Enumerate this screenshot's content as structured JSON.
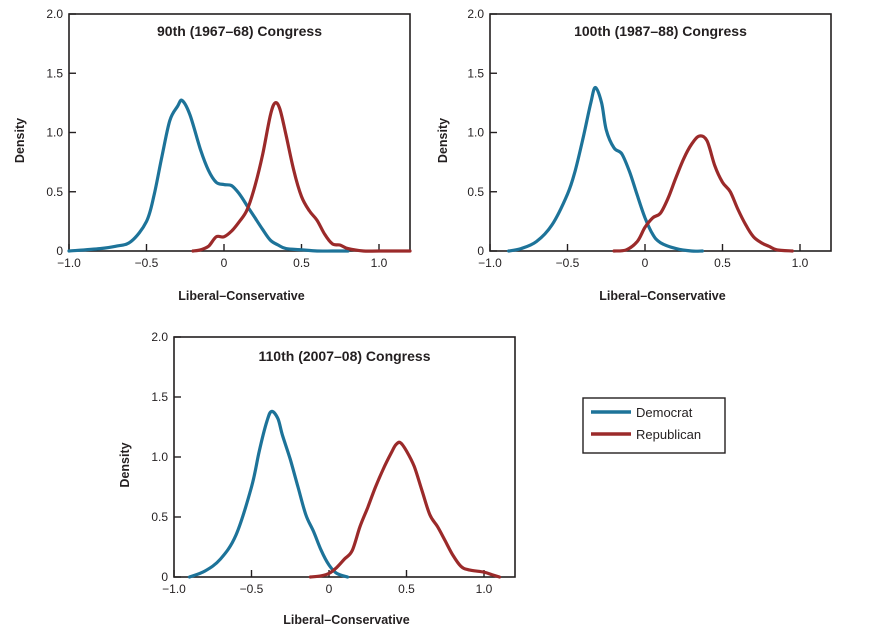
{
  "colors": {
    "democrat": "#1d7399",
    "republican": "#9b2a2a",
    "axis": "#231f20"
  },
  "chart_data": [
    {
      "type": "line",
      "title": "90th (1967–68) Congress",
      "xlabel": "Liberal–Conservative",
      "ylabel": "Density",
      "xlim": [
        -1.0,
        1.2
      ],
      "ylim": [
        0,
        2.0
      ],
      "xticks": [
        -1.0,
        -0.5,
        0,
        0.5,
        1.0
      ],
      "xtick_labels": [
        "−1.0",
        "−0.5",
        "0",
        "0.5",
        "1.0"
      ],
      "yticks": [
        0,
        0.5,
        1.0,
        1.5,
        2.0
      ],
      "ytick_labels": [
        "0",
        "0.5",
        "1.0",
        "1.5",
        "2.0"
      ],
      "series": [
        {
          "name": "Democrat",
          "color": "#1d7399",
          "x": [
            -1.0,
            -0.8,
            -0.7,
            -0.6,
            -0.5,
            -0.45,
            -0.4,
            -0.35,
            -0.3,
            -0.27,
            -0.22,
            -0.15,
            -0.1,
            -0.05,
            0.0,
            0.05,
            0.1,
            0.15,
            0.2,
            0.25,
            0.3,
            0.35,
            0.4,
            0.5,
            0.6,
            0.7,
            0.8
          ],
          "y": [
            0.0,
            0.02,
            0.04,
            0.08,
            0.25,
            0.48,
            0.8,
            1.1,
            1.22,
            1.27,
            1.15,
            0.85,
            0.68,
            0.58,
            0.56,
            0.55,
            0.48,
            0.38,
            0.28,
            0.18,
            0.09,
            0.05,
            0.02,
            0.01,
            0.0,
            0.0,
            0.0
          ]
        },
        {
          "name": "Republican",
          "color": "#9b2a2a",
          "x": [
            -0.2,
            -0.15,
            -0.1,
            -0.05,
            0.0,
            0.05,
            0.1,
            0.15,
            0.2,
            0.25,
            0.3,
            0.33,
            0.36,
            0.4,
            0.45,
            0.5,
            0.55,
            0.6,
            0.65,
            0.7,
            0.75,
            0.8,
            0.9,
            1.0,
            1.2
          ],
          "y": [
            0.0,
            0.01,
            0.04,
            0.12,
            0.12,
            0.17,
            0.25,
            0.35,
            0.55,
            0.82,
            1.15,
            1.25,
            1.2,
            0.98,
            0.68,
            0.46,
            0.34,
            0.26,
            0.14,
            0.06,
            0.05,
            0.02,
            0.0,
            0.0,
            0.0
          ]
        }
      ]
    },
    {
      "type": "line",
      "title": "100th (1987–88) Congress",
      "xlabel": "Liberal–Conservative",
      "ylabel": "Density",
      "xlim": [
        -1.0,
        1.2
      ],
      "ylim": [
        0,
        2.0
      ],
      "xticks": [
        -1.0,
        -0.5,
        0,
        0.5,
        1.0
      ],
      "xtick_labels": [
        "−1.0",
        "−0.5",
        "0",
        "0.5",
        "1.0"
      ],
      "yticks": [
        0,
        0.5,
        1.0,
        1.5,
        2.0
      ],
      "ytick_labels": [
        "0",
        "0.5",
        "1.0",
        "1.5",
        "2.0"
      ],
      "series": [
        {
          "name": "Democrat",
          "color": "#1d7399",
          "x": [
            -0.88,
            -0.8,
            -0.7,
            -0.6,
            -0.5,
            -0.45,
            -0.4,
            -0.35,
            -0.32,
            -0.28,
            -0.25,
            -0.2,
            -0.15,
            -0.1,
            -0.05,
            0.0,
            0.05,
            0.1,
            0.2,
            0.3,
            0.37
          ],
          "y": [
            0.0,
            0.02,
            0.08,
            0.22,
            0.48,
            0.68,
            0.95,
            1.25,
            1.38,
            1.25,
            1.02,
            0.87,
            0.82,
            0.67,
            0.47,
            0.28,
            0.14,
            0.07,
            0.02,
            0.0,
            0.0
          ]
        },
        {
          "name": "Republican",
          "color": "#9b2a2a",
          "x": [
            -0.2,
            -0.12,
            -0.05,
            0.0,
            0.05,
            0.1,
            0.15,
            0.2,
            0.25,
            0.3,
            0.35,
            0.4,
            0.45,
            0.5,
            0.55,
            0.6,
            0.65,
            0.7,
            0.75,
            0.8,
            0.85,
            0.95
          ],
          "y": [
            0.0,
            0.01,
            0.08,
            0.2,
            0.28,
            0.32,
            0.45,
            0.62,
            0.78,
            0.9,
            0.97,
            0.93,
            0.72,
            0.58,
            0.5,
            0.35,
            0.22,
            0.12,
            0.07,
            0.04,
            0.01,
            0.0
          ]
        }
      ]
    },
    {
      "type": "line",
      "title": "110th (2007–08) Congress",
      "xlabel": "Liberal–Conservative",
      "ylabel": "Density",
      "xlim": [
        -1.0,
        1.2
      ],
      "ylim": [
        0,
        2.0
      ],
      "xticks": [
        -1.0,
        -0.5,
        0,
        0.5,
        1.0
      ],
      "xtick_labels": [
        "−1.0",
        "−0.5",
        "0",
        "0.5",
        "1.0"
      ],
      "yticks": [
        0,
        0.5,
        1.0,
        1.5,
        2.0
      ],
      "ytick_labels": [
        "0",
        "0.5",
        "1.0",
        "1.5",
        "2.0"
      ],
      "series": [
        {
          "name": "Democrat",
          "color": "#1d7399",
          "x": [
            -0.9,
            -0.8,
            -0.7,
            -0.6,
            -0.5,
            -0.45,
            -0.4,
            -0.37,
            -0.33,
            -0.3,
            -0.25,
            -0.2,
            -0.15,
            -0.1,
            -0.05,
            0.0,
            0.05,
            0.12
          ],
          "y": [
            0.0,
            0.05,
            0.15,
            0.35,
            0.75,
            1.05,
            1.3,
            1.38,
            1.32,
            1.18,
            0.98,
            0.75,
            0.52,
            0.38,
            0.22,
            0.1,
            0.03,
            0.0
          ]
        },
        {
          "name": "Republican",
          "color": "#9b2a2a",
          "x": [
            -0.12,
            -0.05,
            0.0,
            0.05,
            0.1,
            0.15,
            0.2,
            0.25,
            0.3,
            0.35,
            0.4,
            0.43,
            0.46,
            0.5,
            0.55,
            0.6,
            0.65,
            0.7,
            0.75,
            0.8,
            0.85,
            0.9,
            1.0,
            1.05,
            1.1
          ],
          "y": [
            0.0,
            0.01,
            0.03,
            0.08,
            0.15,
            0.22,
            0.42,
            0.58,
            0.75,
            0.9,
            1.03,
            1.1,
            1.12,
            1.05,
            0.92,
            0.72,
            0.52,
            0.42,
            0.3,
            0.18,
            0.09,
            0.06,
            0.04,
            0.02,
            0.0
          ]
        }
      ]
    }
  ],
  "legend": {
    "items": [
      {
        "label": "Democrat",
        "color": "#1d7399"
      },
      {
        "label": "Republican",
        "color": "#9b2a2a"
      }
    ]
  }
}
